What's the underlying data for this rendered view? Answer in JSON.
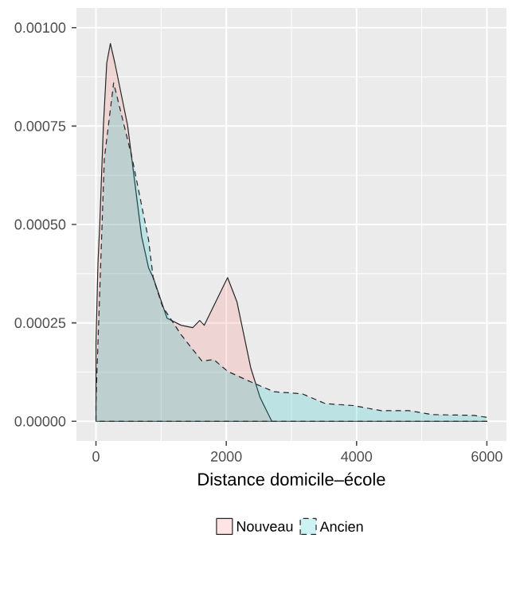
{
  "chart_data": {
    "type": "area",
    "xlabel": "Distance domicile–école",
    "x": [
      0,
      30,
      57,
      114,
      165,
      221,
      290,
      486,
      700,
      807,
      878,
      1091,
      1306,
      1485,
      1592,
      1663,
      2020,
      2163,
      2377,
      2520,
      2699,
      6000
    ],
    "series": [
      {
        "name": "Nouveau",
        "color": "#F8766D",
        "line_style": "solid",
        "values": [
          0.0002,
          0.0004,
          0.000497,
          0.000751,
          0.00091,
          0.00096,
          0.00091,
          0.000751,
          0.00047,
          0.00039,
          0.000365,
          0.000262,
          0.000244,
          0.000238,
          0.000256,
          0.000244,
          0.000365,
          0.000304,
          0.000135,
          6e-05,
          0,
          0
        ]
      },
      {
        "name": "Ancien",
        "color": "#00BFC4",
        "line_style": "dashed",
        "x": [
          0,
          14,
          93,
          128,
          271,
          557,
          807,
          878,
          1020,
          1306,
          1627,
          1806,
          2020,
          2377,
          2734,
          3163,
          3520,
          3948,
          4376,
          4805,
          5162,
          5805,
          6000
        ],
        "values": [
          5e-05,
          0.00012,
          0.000497,
          0.000667,
          0.00086,
          0.000667,
          0.000461,
          0.000365,
          0.000292,
          0.00022,
          0.000153,
          0.000157,
          0.000127,
          0.0001,
          7.5e-05,
          7e-05,
          4.5e-05,
          4e-05,
          2.7e-05,
          2.7e-05,
          1.7e-05,
          1.5e-05,
          1e-05
        ]
      }
    ],
    "xlim": [
      -300,
      6300
    ],
    "ylim": [
      -5e-05,
      0.00105
    ],
    "xticks": [
      0,
      2000,
      4000,
      6000
    ],
    "yticks": [
      {
        "value": 0,
        "label": "0.00000"
      },
      {
        "value": 0.00025,
        "label": "0.00025"
      },
      {
        "value": 0.0005,
        "label": "0.00050"
      },
      {
        "value": 0.00075,
        "label": "0.00075"
      },
      {
        "value": 0.001,
        "label": "0.00100"
      }
    ],
    "grid": true,
    "legend": "bottom"
  }
}
